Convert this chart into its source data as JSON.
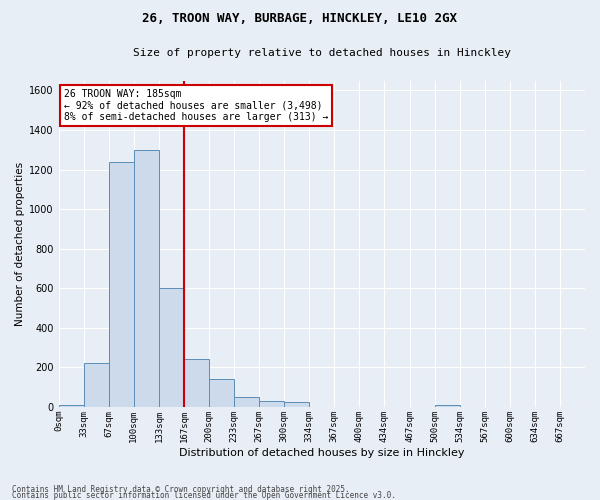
{
  "title1": "26, TROON WAY, BURBAGE, HINCKLEY, LE10 2GX",
  "title2": "Size of property relative to detached houses in Hinckley",
  "xlabel": "Distribution of detached houses by size in Hinckley",
  "ylabel": "Number of detached properties",
  "bar_labels": [
    "0sqm",
    "33sqm",
    "67sqm",
    "100sqm",
    "133sqm",
    "167sqm",
    "200sqm",
    "233sqm",
    "267sqm",
    "300sqm",
    "334sqm",
    "367sqm",
    "400sqm",
    "434sqm",
    "467sqm",
    "500sqm",
    "534sqm",
    "567sqm",
    "600sqm",
    "634sqm",
    "667sqm"
  ],
  "bar_values": [
    10,
    220,
    1240,
    1300,
    600,
    240,
    140,
    50,
    30,
    25,
    0,
    0,
    0,
    0,
    0,
    10,
    0,
    0,
    0,
    0,
    0
  ],
  "bar_color": "#ccdaeb",
  "bar_edge_color": "#5b8db8",
  "bg_color": "#e8eef5",
  "grid_color": "#d0d8e4",
  "vline_x": 5,
  "vline_color": "#cc0000",
  "annotation_text": "26 TROON WAY: 185sqm\n← 92% of detached houses are smaller (3,498)\n8% of semi-detached houses are larger (313) →",
  "annotation_box_color": "#cc0000",
  "footer1": "Contains HM Land Registry data © Crown copyright and database right 2025.",
  "footer2": "Contains public sector information licensed under the Open Government Licence v3.0.",
  "ylim": [
    0,
    1650
  ],
  "yticks": [
    0,
    200,
    400,
    600,
    800,
    1000,
    1200,
    1400,
    1600
  ],
  "bin_width": 1
}
